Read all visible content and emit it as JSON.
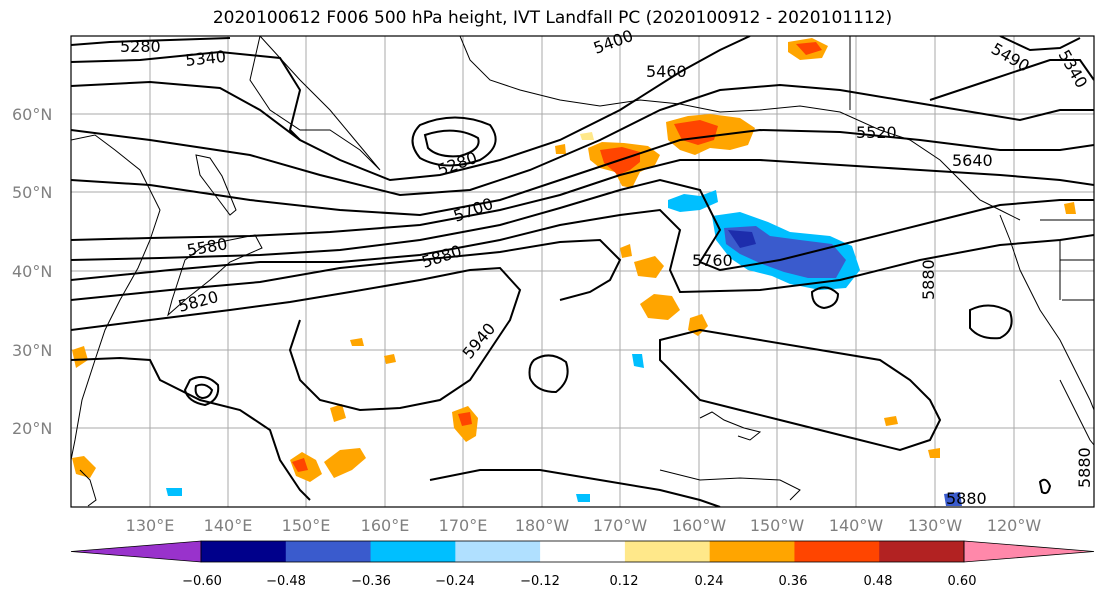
{
  "title": "2020100612 F006 500 hPa height, IVT Landfall PC (2020100912 - 2020101112)",
  "map": {
    "lat_labels": [
      "60°N",
      "50°N",
      "40°N",
      "30°N",
      "20°N"
    ],
    "lon_labels": [
      "130°E",
      "140°E",
      "150°E",
      "160°E",
      "170°E",
      "180°W",
      "170°W",
      "160°W",
      "150°W",
      "140°W",
      "130°W",
      "120°W"
    ],
    "contour_labels": [
      "5280",
      "5340",
      "5400",
      "5460",
      "5490",
      "5340",
      "5280",
      "5520",
      "5640",
      "5700",
      "5580",
      "5820",
      "5880",
      "5760",
      "5880",
      "5940",
      "5880",
      "5880"
    ],
    "grid": true,
    "colors": {
      "grid": "#aaaaaa",
      "contour": "#000000",
      "coast": "#000000"
    }
  },
  "colorbar": {
    "ticks": [
      "−0.60",
      "−0.48",
      "−0.36",
      "−0.24",
      "−0.12",
      "0.12",
      "0.24",
      "0.36",
      "0.48",
      "0.60"
    ],
    "colors": [
      "#9932cc",
      "#00008b",
      "#3a5bcd",
      "#00bfff",
      "#b0e0ff",
      "#ffffff",
      "#ffe88a",
      "#ffa500",
      "#ff4500",
      "#b22222",
      "#ff88aa"
    ]
  }
}
